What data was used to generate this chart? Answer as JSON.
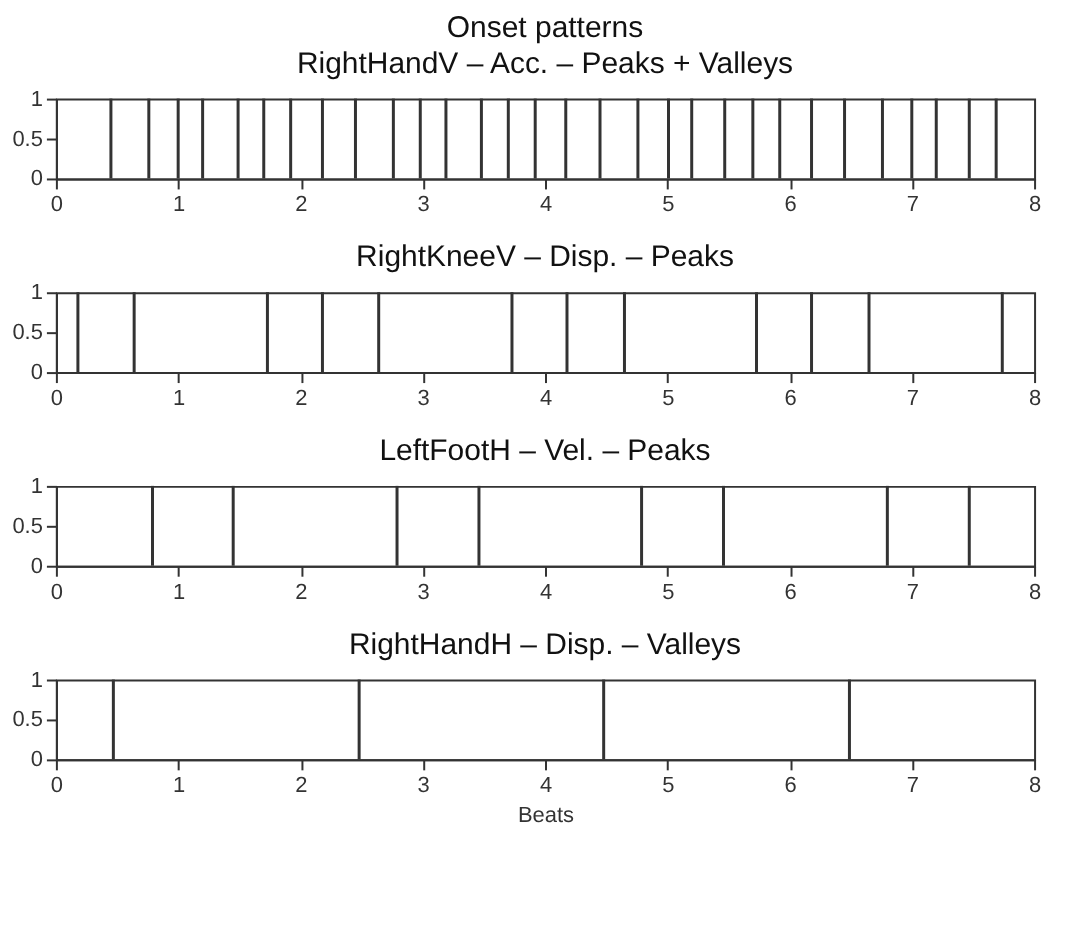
{
  "chart_data": [
    {
      "type": "bar",
      "title": "Onset patterns",
      "subtitle": "RightHandV – Acc. – Peaks + Valleys",
      "color": "#333333",
      "x": [
        0.45,
        0.76,
        1.0,
        1.2,
        1.49,
        1.7,
        1.92,
        2.18,
        2.45,
        2.76,
        2.98,
        3.19,
        3.48,
        3.7,
        3.92,
        4.17,
        4.45,
        4.76,
        5.01,
        5.2,
        5.47,
        5.7,
        5.92,
        6.18,
        6.45,
        6.76,
        7.0,
        7.2,
        7.47,
        7.69
      ],
      "values": [
        1,
        1,
        1,
        1,
        1,
        1,
        1,
        1,
        1,
        1,
        1,
        1,
        1,
        1,
        1,
        1,
        1,
        1,
        1,
        1,
        1,
        1,
        1,
        1,
        1,
        1,
        1,
        1,
        1,
        1
      ],
      "xlim": [
        0,
        8
      ],
      "xticks": [
        0,
        1,
        2,
        3,
        4,
        5,
        6,
        7,
        8
      ],
      "ylim": [
        0,
        1
      ],
      "yticks": [
        0,
        0.5,
        1
      ],
      "grid": false
    },
    {
      "type": "bar",
      "title": "RightKneeV – Disp. – Peaks",
      "color": "#333333",
      "x": [
        0.18,
        0.64,
        1.73,
        2.18,
        2.64,
        3.73,
        4.18,
        4.65,
        5.73,
        6.18,
        6.65,
        7.74
      ],
      "values": [
        1,
        1,
        1,
        1,
        1,
        1,
        1,
        1,
        1,
        1,
        1,
        1
      ],
      "xlim": [
        0,
        8
      ],
      "xticks": [
        0,
        1,
        2,
        3,
        4,
        5,
        6,
        7,
        8
      ],
      "ylim": [
        0,
        1
      ],
      "yticks": [
        0,
        0.5,
        1
      ],
      "grid": false
    },
    {
      "type": "bar",
      "title": "LeftFootH – Vel. – Peaks",
      "color": "#333333",
      "x": [
        0.79,
        1.45,
        2.79,
        3.46,
        4.79,
        5.46,
        6.8,
        7.47
      ],
      "values": [
        1,
        1,
        1,
        1,
        1,
        1,
        1,
        1
      ],
      "xlim": [
        0,
        8
      ],
      "xticks": [
        0,
        1,
        2,
        3,
        4,
        5,
        6,
        7,
        8
      ],
      "ylim": [
        0,
        1
      ],
      "yticks": [
        0,
        0.5,
        1
      ],
      "grid": false
    },
    {
      "type": "bar",
      "title": "RightHandH – Disp. – Valleys",
      "xlabel": "Beats",
      "color": "#333333",
      "x": [
        0.47,
        2.48,
        4.48,
        6.49
      ],
      "values": [
        1,
        1,
        1,
        1
      ],
      "xlim": [
        0,
        8
      ],
      "xticks": [
        0,
        1,
        2,
        3,
        4,
        5,
        6,
        7,
        8
      ],
      "ylim": [
        0,
        1
      ],
      "yticks": [
        0,
        0.5,
        1
      ],
      "grid": false
    }
  ]
}
